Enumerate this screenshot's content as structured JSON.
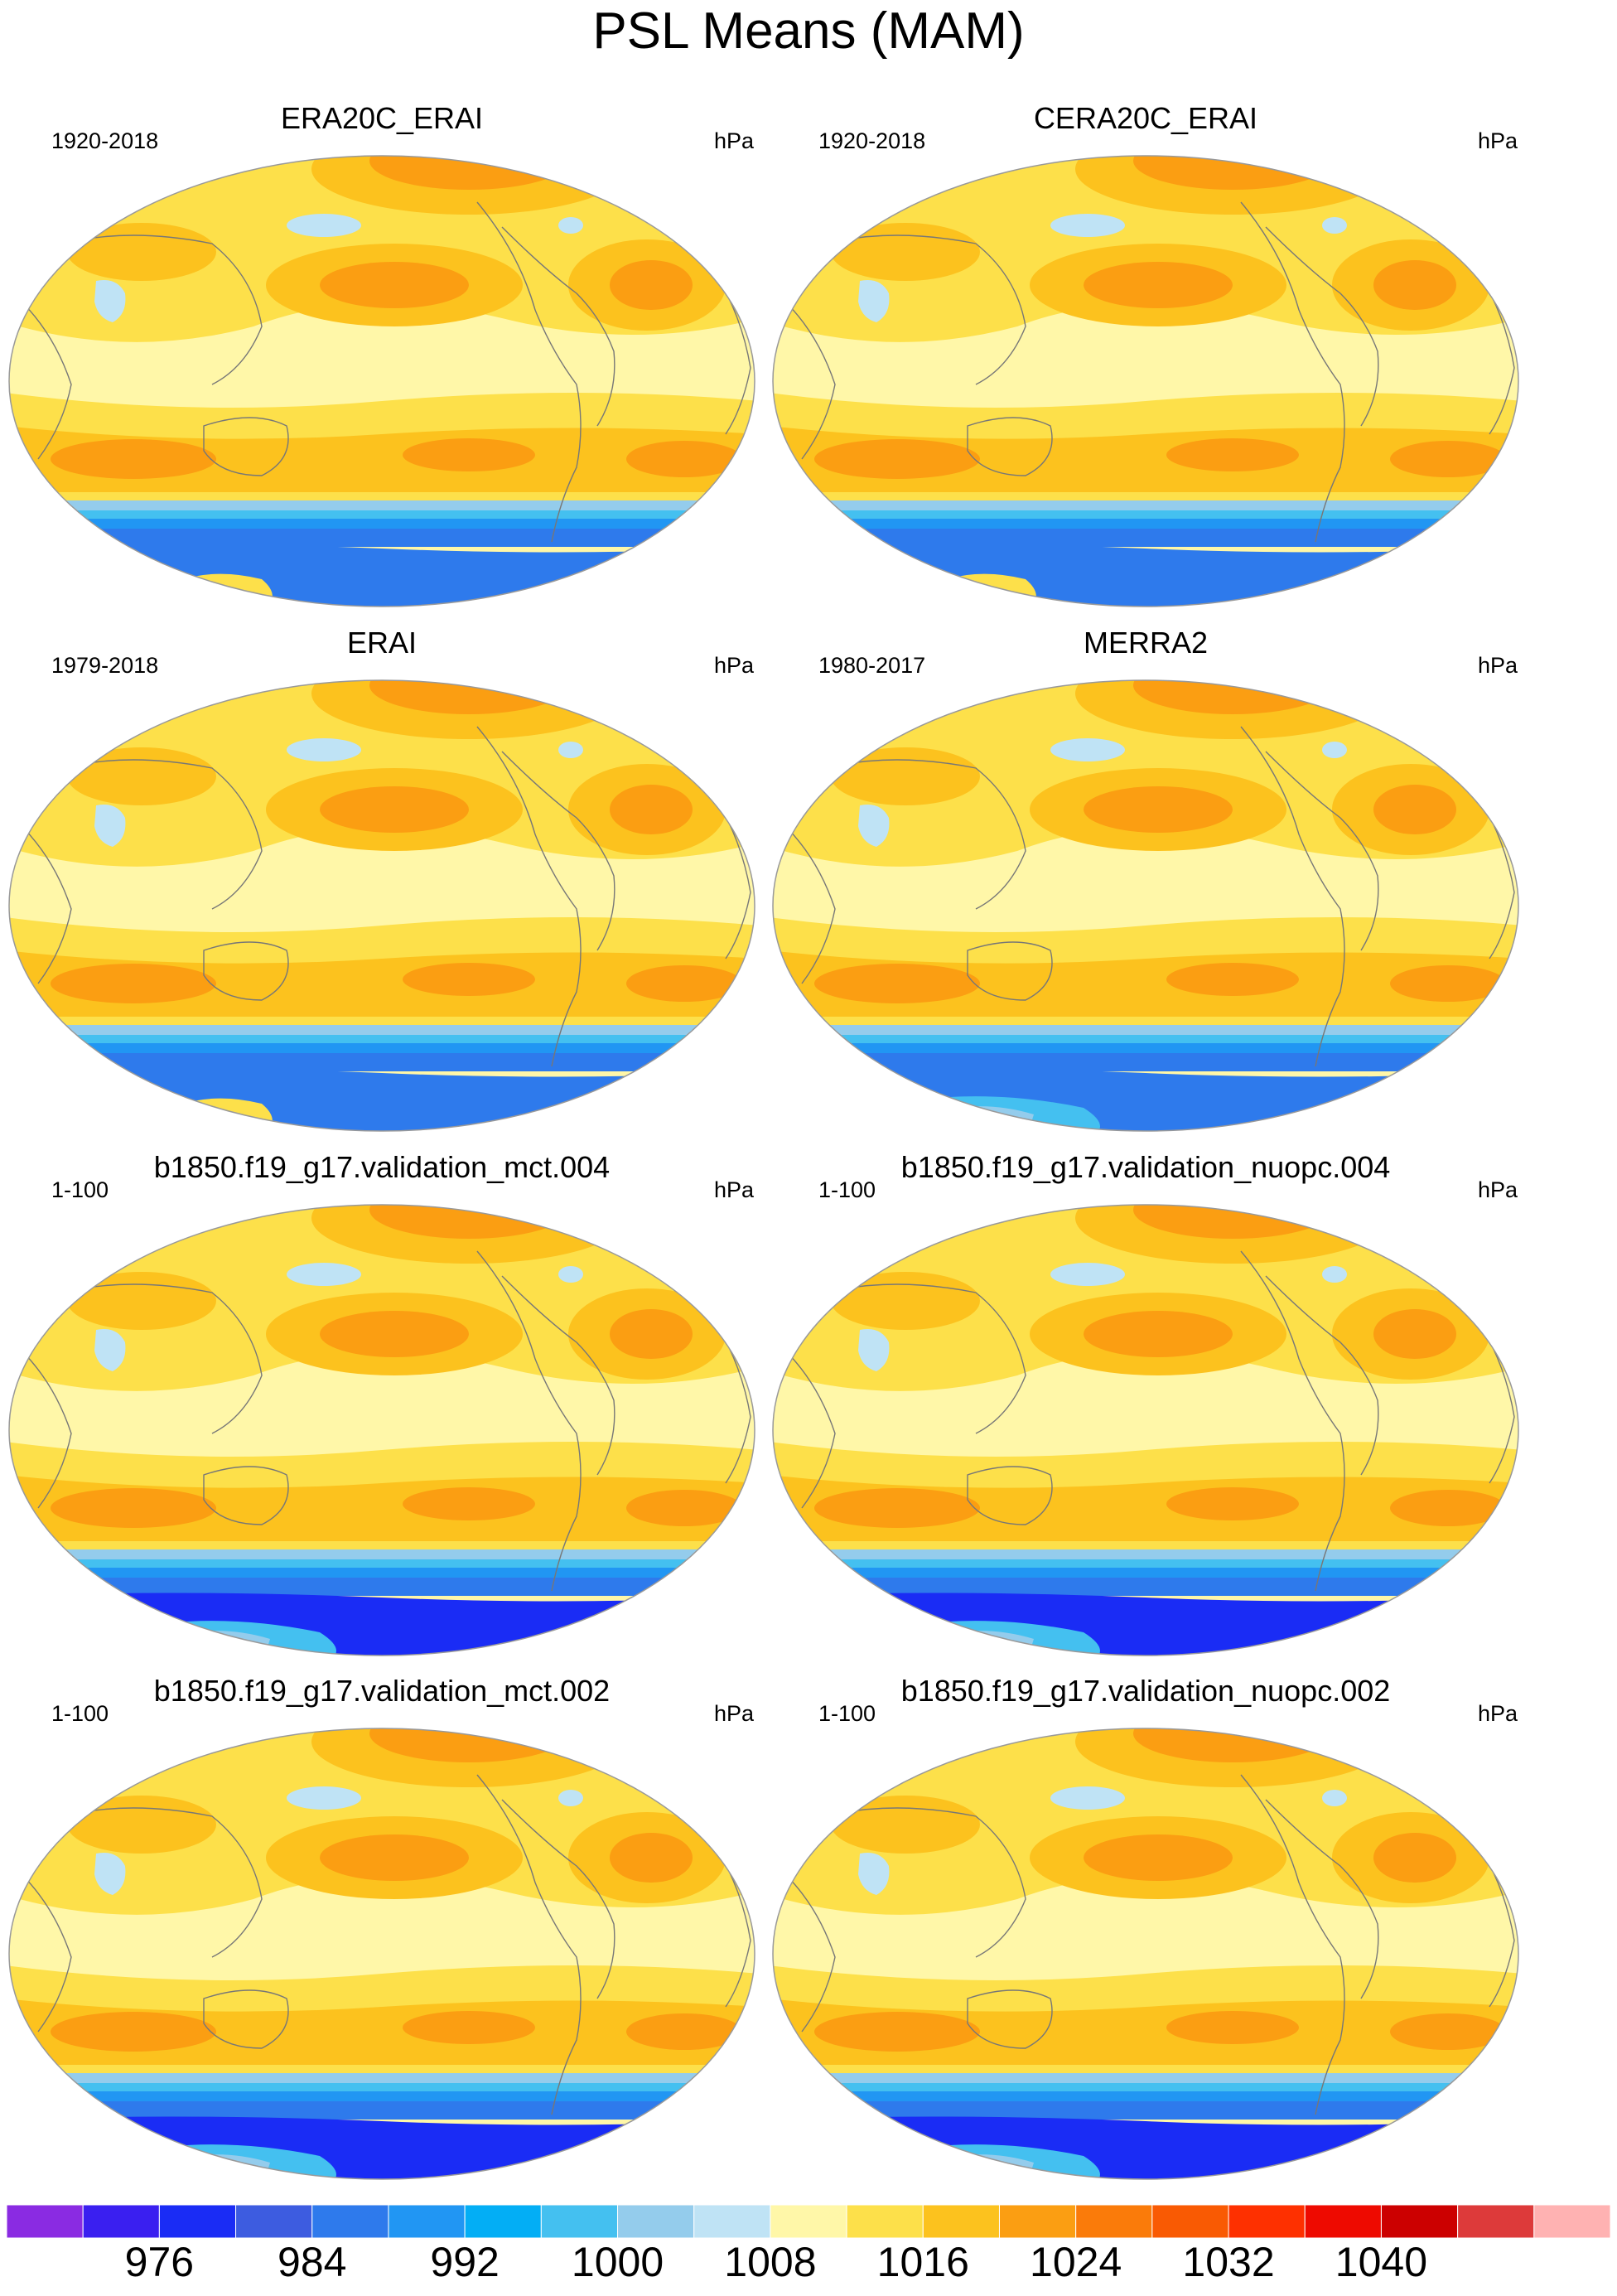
{
  "title": "PSL Means (MAM)",
  "panels": [
    {
      "title": "ERA20C_ERAI",
      "range": "1920-2018",
      "unit": "hPa",
      "south_blue": "light"
    },
    {
      "title": "CERA20C_ERAI",
      "range": "1920-2018",
      "unit": "hPa",
      "south_blue": "light"
    },
    {
      "title": "ERAI",
      "range": "1979-2018",
      "unit": "hPa",
      "south_blue": "light"
    },
    {
      "title": "MERRA2",
      "range": "1980-2017",
      "unit": "hPa",
      "south_blue": "medium"
    },
    {
      "title": "b1850.f19_g17.validation_mct.004",
      "range": "1-100",
      "unit": "hPa",
      "south_blue": "deep"
    },
    {
      "title": "b1850.f19_g17.validation_nuopc.004",
      "range": "1-100",
      "unit": "hPa",
      "south_blue": "deep"
    },
    {
      "title": "b1850.f19_g17.validation_mct.002",
      "range": "1-100",
      "unit": "hPa",
      "south_blue": "deep"
    },
    {
      "title": "b1850.f19_g17.validation_nuopc.002",
      "range": "1-100",
      "unit": "hPa",
      "south_blue": "deep"
    }
  ],
  "colorbar": {
    "colors": [
      "#8a2be2",
      "#3a1ff0",
      "#1a2cf5",
      "#3d5ce0",
      "#2e7aec",
      "#2196f3",
      "#03aef5",
      "#44c0f0",
      "#94ccec",
      "#bfe3f5",
      "#fff7a8",
      "#fde04a",
      "#fcc21e",
      "#fb9e12",
      "#fa7b0a",
      "#f95a03",
      "#fe3000",
      "#ee0a00",
      "#cc0000",
      "#dd3a3a",
      "#ffb2b2"
    ],
    "labels": [
      "976",
      "984",
      "992",
      "1000",
      "1008",
      "1016",
      "1024",
      "1032",
      "1040"
    ]
  }
}
